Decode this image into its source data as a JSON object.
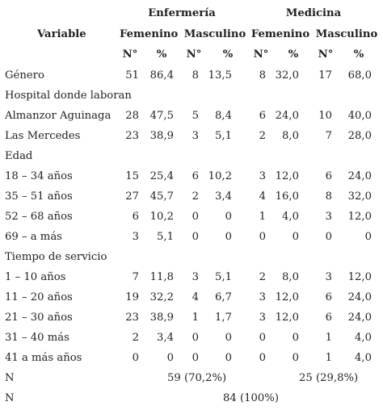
{
  "header": {
    "group1": "Enfermería",
    "group2": "Medicina",
    "variable": "Variable",
    "sub": [
      "Femenino",
      "Masculino",
      "Femenino",
      "Masculino"
    ],
    "units": [
      "N°",
      "%",
      "N°",
      "%",
      "N°",
      "%",
      "N°",
      "%"
    ]
  },
  "rows": [
    {
      "label": "Género",
      "cells": [
        "51",
        "86,4",
        "8",
        "13,5",
        "8",
        "32,0",
        "17",
        "68,0"
      ]
    },
    {
      "label": "Hospital donde laboran",
      "cells": []
    },
    {
      "label": "Almanzor Aguinaga",
      "cells": [
        "28",
        "47,5",
        "5",
        "8,4",
        "6",
        "24,0",
        "10",
        "40,0"
      ]
    },
    {
      "label": "Las Mercedes",
      "cells": [
        "23",
        "38,9",
        "3",
        "5,1",
        "2",
        "8,0",
        "7",
        "28,0"
      ]
    },
    {
      "label": "Edad",
      "cells": []
    },
    {
      "label": "18 – 34 años",
      "cells": [
        "15",
        "25,4",
        "6",
        "10,2",
        "3",
        "12,0",
        "6",
        "24,0"
      ]
    },
    {
      "label": "35 – 51 años",
      "cells": [
        "27",
        "45,7",
        "2",
        "3,4",
        "4",
        "16,0",
        "8",
        "32,0"
      ]
    },
    {
      "label": "52 – 68 años",
      "cells": [
        "6",
        "10,2",
        "0",
        "0",
        "1",
        "4,0",
        "3",
        "12,0"
      ]
    },
    {
      "label": "69 – a más",
      "cells": [
        "3",
        "5,1",
        "0",
        "0",
        "0",
        "0",
        "0",
        "0"
      ]
    },
    {
      "label": "Tiempo de servicio",
      "cells": []
    },
    {
      "label": "1 – 10 años",
      "cells": [
        "7",
        "11,8",
        "3",
        "5,1",
        "2",
        "8,0",
        "3",
        "12,0"
      ]
    },
    {
      "label": "11 – 20 años",
      "cells": [
        "19",
        "32,2",
        "4",
        "6,7",
        "3",
        "12,0",
        "6",
        "24,0"
      ]
    },
    {
      "label": "21 – 30 años",
      "cells": [
        "23",
        "38,9",
        "1",
        "1,7",
        "3",
        "12,0",
        "6",
        "24,0"
      ]
    },
    {
      "label": "31 – 40 más",
      "cells": [
        "2",
        "3,4",
        "0",
        "0",
        "0",
        "0",
        "1",
        "4,0"
      ]
    },
    {
      "label": "41 a más años",
      "cells": [
        "0",
        "0",
        "0",
        "0",
        "0",
        "0",
        "1",
        "4,0"
      ]
    }
  ],
  "totals": {
    "n_label": "N",
    "enfermeria_total": "59 (70,2%)",
    "medicina_total": "25 (29,8%)",
    "n2_label": "N",
    "grand_total": "84 (100%)"
  }
}
